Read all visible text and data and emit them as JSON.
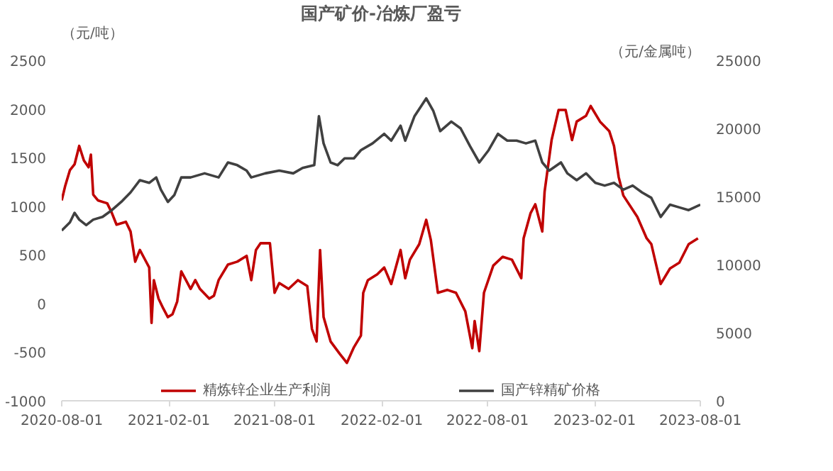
{
  "chart_data": {
    "type": "line",
    "title": "国产矿价-冶炼厂盈亏",
    "ylabel": "（元/吨）",
    "y2label": "（元/金属吨）",
    "xlim": [
      "2020-08-01",
      "2023-08-01"
    ],
    "xticks": [
      "2020-08-01",
      "2021-02-01",
      "2021-08-01",
      "2022-02-01",
      "2022-08-01",
      "2023-02-01",
      "2023-08-01"
    ],
    "ylim": [
      -1000,
      2500
    ],
    "yticks": [
      -1000,
      -500,
      0,
      500,
      1000,
      1500,
      2000,
      2500
    ],
    "y2lim": [
      0,
      25000
    ],
    "y2ticks": [
      0,
      5000,
      10000,
      15000,
      20000,
      25000
    ],
    "grid": false,
    "legend": "bottom",
    "marker": "none",
    "line_style": "solid",
    "series": [
      {
        "name": "精炼锌企业生产利润",
        "color": "#c00000",
        "x": [
          "2020-08-01",
          "2020-08-07",
          "2020-08-15",
          "2020-08-23",
          "2020-08-31",
          "2020-09-08",
          "2020-09-16",
          "2020-09-20",
          "2020-09-24",
          "2020-10-02",
          "2020-10-18",
          "2020-10-26",
          "2020-11-03",
          "2020-11-19",
          "2020-11-27",
          "2020-12-05",
          "2020-12-13",
          "2020-12-21",
          "2020-12-29",
          "2021-01-02",
          "2021-01-06",
          "2021-01-14",
          "2021-01-22",
          "2021-01-30",
          "2021-02-07",
          "2021-02-15",
          "2021-02-22",
          "2021-03-02",
          "2021-03-10",
          "2021-03-18",
          "2021-03-26",
          "2021-04-11",
          "2021-04-19",
          "2021-04-27",
          "2021-05-13",
          "2021-05-29",
          "2021-06-14",
          "2021-06-22",
          "2021-06-30",
          "2021-07-08",
          "2021-07-24",
          "2021-08-01",
          "2021-08-09",
          "2021-08-25",
          "2021-09-10",
          "2021-09-26",
          "2021-10-04",
          "2021-10-12",
          "2021-10-18",
          "2021-10-24",
          "2021-11-05",
          "2021-11-21",
          "2021-12-03",
          "2021-12-15",
          "2021-12-27",
          "2021-12-31",
          "2022-01-08",
          "2022-01-24",
          "2022-02-05",
          "2022-02-17",
          "2022-03-05",
          "2022-03-13",
          "2022-03-21",
          "2022-04-06",
          "2022-04-18",
          "2022-04-26",
          "2022-05-08",
          "2022-05-24",
          "2022-06-08",
          "2022-06-24",
          "2022-07-06",
          "2022-07-10",
          "2022-07-18",
          "2022-07-26",
          "2022-08-11",
          "2022-08-27",
          "2022-09-12",
          "2022-09-28",
          "2022-10-02",
          "2022-10-14",
          "2022-10-22",
          "2022-11-03",
          "2022-11-07",
          "2022-11-19",
          "2022-12-01",
          "2022-12-13",
          "2022-12-24",
          "2023-01-01",
          "2023-01-17",
          "2023-01-25",
          "2023-02-10",
          "2023-02-26",
          "2023-03-06",
          "2023-03-14",
          "2023-03-22",
          "2023-04-15",
          "2023-05-01",
          "2023-05-09",
          "2023-05-25",
          "2023-06-10",
          "2023-06-26",
          "2023-07-12",
          "2023-07-28"
        ],
        "values": [
          1060,
          1210,
          1370,
          1430,
          1620,
          1470,
          1400,
          1530,
          1120,
          1060,
          1030,
          930,
          810,
          840,
          740,
          430,
          550,
          460,
          370,
          -200,
          240,
          50,
          -50,
          -140,
          -110,
          20,
          330,
          240,
          150,
          240,
          150,
          50,
          80,
          240,
          400,
          430,
          490,
          240,
          550,
          620,
          620,
          110,
          210,
          150,
          240,
          180,
          -260,
          -390,
          550,
          -140,
          -390,
          -520,
          -610,
          -450,
          -330,
          110,
          240,
          300,
          370,
          200,
          550,
          260,
          450,
          610,
          860,
          650,
          110,
          140,
          110,
          -80,
          -460,
          -180,
          -490,
          110,
          390,
          480,
          450,
          260,
          670,
          930,
          1020,
          740,
          1150,
          1680,
          1990,
          1990,
          1680,
          1870,
          1930,
          2030,
          1870,
          1770,
          1620,
          1300,
          1110,
          890,
          670,
          610,
          200,
          360,
          420,
          610,
          670
        ]
      },
      {
        "name": "国产锌精矿价格",
        "color": "#404040",
        "axis": "y2",
        "x": [
          "2020-08-01",
          "2020-08-15",
          "2020-08-23",
          "2020-08-31",
          "2020-09-12",
          "2020-09-24",
          "2020-10-10",
          "2020-10-26",
          "2020-11-11",
          "2020-11-27",
          "2020-12-13",
          "2020-12-29",
          "2021-01-10",
          "2021-01-18",
          "2021-01-30",
          "2021-02-10",
          "2021-02-22",
          "2021-03-10",
          "2021-04-03",
          "2021-04-27",
          "2021-05-13",
          "2021-05-29",
          "2021-06-14",
          "2021-06-22",
          "2021-07-16",
          "2021-08-09",
          "2021-09-02",
          "2021-09-18",
          "2021-10-08",
          "2021-10-16",
          "2021-10-24",
          "2021-11-05",
          "2021-11-17",
          "2021-11-29",
          "2021-12-15",
          "2021-12-27",
          "2022-01-16",
          "2022-02-05",
          "2022-02-17",
          "2022-03-05",
          "2022-03-13",
          "2022-03-29",
          "2022-04-18",
          "2022-04-30",
          "2022-05-12",
          "2022-05-31",
          "2022-06-16",
          "2022-07-02",
          "2022-07-18",
          "2022-08-03",
          "2022-08-19",
          "2022-09-04",
          "2022-09-20",
          "2022-10-06",
          "2022-10-22",
          "2022-11-03",
          "2022-11-15",
          "2022-12-05",
          "2022-12-16",
          "2023-01-01",
          "2023-01-17",
          "2023-02-02",
          "2023-02-18",
          "2023-03-06",
          "2023-03-22",
          "2023-04-07",
          "2023-04-23",
          "2023-05-09",
          "2023-05-25",
          "2023-06-10",
          "2023-06-26",
          "2023-07-12",
          "2023-08-01"
        ],
        "values": [
          12500,
          13100,
          13800,
          13300,
          12900,
          13300,
          13500,
          14000,
          14600,
          15300,
          16200,
          16000,
          16400,
          15500,
          14600,
          15100,
          16400,
          16400,
          16700,
          16400,
          17500,
          17300,
          16900,
          16400,
          16700,
          16900,
          16700,
          17100,
          17300,
          20900,
          18900,
          17500,
          17300,
          17800,
          17800,
          18400,
          18900,
          19600,
          19100,
          20200,
          19100,
          20900,
          22200,
          21300,
          19800,
          20500,
          20000,
          18700,
          17500,
          18400,
          19600,
          19100,
          19100,
          18900,
          19100,
          17500,
          16900,
          17500,
          16700,
          16200,
          16700,
          16000,
          15800,
          16000,
          15500,
          15800,
          15300,
          14900,
          13500,
          14400,
          14200,
          14000,
          14400
        ]
      }
    ]
  }
}
